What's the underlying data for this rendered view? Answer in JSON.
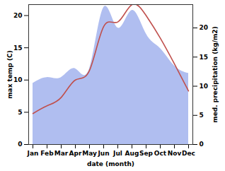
{
  "chart_data": {
    "type": "line",
    "x_label": "date (month)",
    "categories": [
      "Jan",
      "Feb",
      "Mar",
      "Apr",
      "May",
      "Jun",
      "Jul",
      "Aug",
      "Sep",
      "Oct",
      "Nov",
      "Dec"
    ],
    "series": [
      {
        "name": "max temp (C)",
        "type": "line",
        "color": "#c0504d",
        "values": [
          4.8,
          6.0,
          7.3,
          10.0,
          11.5,
          18.3,
          19.0,
          21.7,
          20.0,
          16.5,
          12.5,
          8.3
        ]
      },
      {
        "name": "med. precipitation (kg/m2)",
        "type": "area",
        "color": "#b0bef0",
        "axis": "y2",
        "values": [
          10.5,
          11.5,
          11.5,
          13.0,
          13.0,
          23.5,
          20.0,
          23.0,
          19.0,
          16.5,
          13.5,
          12.2
        ]
      }
    ],
    "ylim": [
      0,
      21.7
    ],
    "yticks": [
      0,
      5,
      10,
      15,
      20
    ],
    "y2lim": [
      0,
      24
    ],
    "y2ticks": [
      0,
      5,
      10,
      15,
      20
    ]
  }
}
